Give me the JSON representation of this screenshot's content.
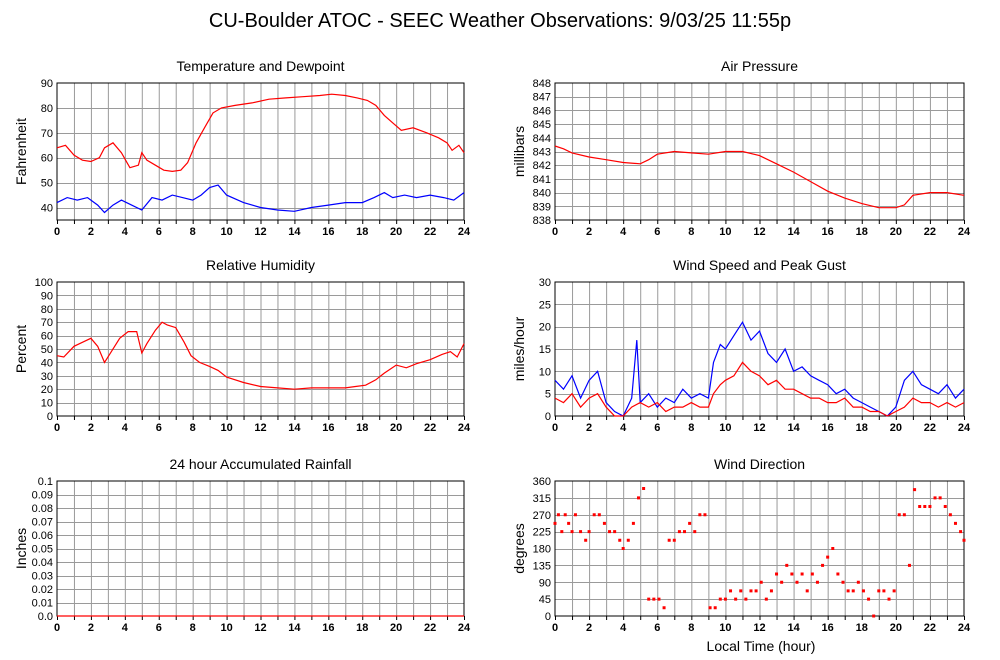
{
  "page": {
    "title": "CU-Boulder ATOC - SEEC Weather Observations: 9/03/25 11:55p",
    "xlabel": "Local Time (hour)"
  },
  "colors": {
    "primary": "#ff0000",
    "secondary": "#0000ff",
    "grid": "#9a9a9a"
  },
  "chart_data": [
    {
      "id": "temperature",
      "type": "line",
      "title": "Temperature and Dewpoint",
      "ylabel": "Fahrenheit",
      "xlim": [
        0,
        24
      ],
      "ylim": [
        35,
        90
      ],
      "yticks": [
        40,
        50,
        60,
        70,
        80,
        90
      ],
      "xticks": [
        0,
        2,
        4,
        6,
        8,
        10,
        12,
        14,
        16,
        18,
        20,
        22,
        24
      ],
      "grid": true,
      "series": [
        {
          "color": "#ff0000",
          "x": [
            0,
            0.5,
            1,
            1.5,
            2,
            2.5,
            2.8,
            3.3,
            3.8,
            4.3,
            4.8,
            5,
            5.3,
            5.8,
            6.3,
            6.8,
            7.3,
            7.7,
            8.2,
            8.7,
            9.2,
            9.7,
            10.5,
            11.5,
            12.5,
            13.5,
            14.5,
            15.5,
            16.2,
            17,
            17.7,
            18.3,
            18.8,
            19.3,
            19.8,
            20.3,
            21,
            21.8,
            22.5,
            23,
            23.3,
            23.7,
            24
          ],
          "y": [
            64,
            65,
            61,
            59,
            58.5,
            60,
            64,
            66,
            62,
            56,
            57,
            62,
            59,
            57,
            55,
            54.5,
            55,
            58,
            66,
            72,
            78,
            80,
            81,
            82,
            83.5,
            84,
            84.5,
            85,
            85.5,
            85,
            84,
            83,
            81,
            77,
            74,
            71,
            72,
            70,
            68,
            66,
            63,
            65,
            62
          ]
        },
        {
          "color": "#0000ff",
          "x": [
            0,
            0.6,
            1.2,
            1.8,
            2.4,
            2.8,
            3.3,
            3.8,
            4.4,
            5,
            5.6,
            6.2,
            6.8,
            7.4,
            8,
            8.5,
            9,
            9.5,
            10,
            11,
            12,
            13,
            14,
            15,
            16,
            17,
            18,
            18.7,
            19.3,
            19.8,
            20.5,
            21.2,
            22,
            22.8,
            23.4,
            24
          ],
          "y": [
            42,
            44,
            43,
            44,
            41,
            38,
            41,
            43,
            41,
            39,
            44,
            43,
            45,
            44,
            43,
            45,
            48,
            49,
            45,
            42,
            40,
            39,
            38.5,
            40,
            41,
            42,
            42,
            44,
            46,
            44,
            45,
            44,
            45,
            44,
            43,
            46
          ]
        }
      ]
    },
    {
      "id": "pressure",
      "type": "line",
      "title": "Air Pressure",
      "ylabel": "millibars",
      "xlim": [
        0,
        24
      ],
      "ylim": [
        838,
        848
      ],
      "yticks": [
        838,
        839,
        840,
        841,
        842,
        843,
        844,
        845,
        846,
        847,
        848
      ],
      "xticks": [
        0,
        2,
        4,
        6,
        8,
        10,
        12,
        14,
        16,
        18,
        20,
        22,
        24
      ],
      "grid": true,
      "series": [
        {
          "color": "#ff0000",
          "x": [
            0,
            0.5,
            1,
            2,
            3,
            4,
            5,
            5.5,
            6,
            7,
            8,
            9,
            10,
            11,
            12,
            13,
            14,
            15,
            16,
            17,
            18,
            19,
            20,
            20.5,
            21,
            22,
            23,
            24
          ],
          "y": [
            843.4,
            843.2,
            842.9,
            842.6,
            842.4,
            842.2,
            842.1,
            842.4,
            842.8,
            843,
            842.9,
            842.8,
            843,
            843,
            842.7,
            842.1,
            841.5,
            840.8,
            840.1,
            839.6,
            839.2,
            838.9,
            838.9,
            839.1,
            839.8,
            840,
            840,
            839.8
          ]
        }
      ]
    },
    {
      "id": "humidity",
      "type": "line",
      "title": "Relative Humidity",
      "ylabel": "Percent",
      "xlim": [
        0,
        24
      ],
      "ylim": [
        0,
        100
      ],
      "yticks": [
        0,
        10,
        20,
        30,
        40,
        50,
        60,
        70,
        80,
        90,
        100
      ],
      "xticks": [
        0,
        2,
        4,
        6,
        8,
        10,
        12,
        14,
        16,
        18,
        20,
        22,
        24
      ],
      "grid": true,
      "series": [
        {
          "color": "#ff0000",
          "x": [
            0,
            0.4,
            1,
            1.5,
            2,
            2.4,
            2.8,
            3.2,
            3.7,
            4.2,
            4.7,
            5,
            5.3,
            5.8,
            6.2,
            6.5,
            7,
            7.5,
            7.9,
            8.4,
            9,
            9.5,
            10,
            11,
            12,
            13,
            14,
            15,
            16,
            17,
            17.6,
            18.2,
            18.8,
            19.3,
            20,
            20.6,
            21.2,
            22,
            22.7,
            23.2,
            23.6,
            24
          ],
          "y": [
            45,
            44,
            52,
            55,
            58,
            52,
            40,
            48,
            58,
            63,
            63,
            47,
            54,
            64,
            70,
            68,
            66,
            55,
            45,
            40,
            37,
            34,
            29,
            25,
            22,
            21,
            20,
            21,
            21,
            21,
            22,
            23,
            27,
            32,
            38,
            36,
            39,
            42,
            46,
            48,
            44,
            54
          ]
        }
      ]
    },
    {
      "id": "wind-speed",
      "type": "line",
      "title": "Wind Speed and Peak Gust",
      "ylabel": "miles/hour",
      "xlim": [
        0,
        24
      ],
      "ylim": [
        0,
        30
      ],
      "yticks": [
        0,
        5,
        10,
        15,
        20,
        25,
        30
      ],
      "xticks": [
        0,
        2,
        4,
        6,
        8,
        10,
        12,
        14,
        16,
        18,
        20,
        22,
        24
      ],
      "grid": true,
      "series": [
        {
          "color": "#0000ff",
          "x": [
            0,
            0.5,
            1,
            1.5,
            2,
            2.5,
            3,
            3.5,
            4,
            4.5,
            4.8,
            5,
            5.5,
            6,
            6.5,
            7,
            7.5,
            8,
            8.5,
            9,
            9.3,
            9.7,
            10,
            10.5,
            11,
            11.5,
            12,
            12.5,
            13,
            13.5,
            14,
            14.5,
            15,
            15.5,
            16,
            16.5,
            17,
            17.5,
            18,
            18.5,
            19,
            19.5,
            20,
            20.5,
            21,
            21.5,
            22,
            22.5,
            23,
            23.5,
            24
          ],
          "y": [
            8,
            6,
            9,
            4,
            8,
            10,
            3,
            1,
            0,
            4,
            17,
            3,
            5,
            2,
            4,
            3,
            6,
            4,
            5,
            4,
            12,
            16,
            15,
            18,
            21,
            17,
            19,
            14,
            12,
            15,
            10,
            11,
            9,
            8,
            7,
            5,
            6,
            4,
            3,
            2,
            1,
            0,
            2,
            8,
            10,
            7,
            6,
            5,
            7,
            4,
            6
          ]
        },
        {
          "color": "#ff0000",
          "x": [
            0,
            0.5,
            1,
            1.5,
            2,
            2.5,
            3,
            3.5,
            4,
            4.5,
            5,
            5.5,
            6,
            6.5,
            7,
            7.5,
            8,
            8.5,
            9,
            9.3,
            9.7,
            10,
            10.5,
            11,
            11.5,
            12,
            12.5,
            13,
            13.5,
            14,
            14.5,
            15,
            15.5,
            16,
            16.5,
            17,
            17.5,
            18,
            18.5,
            19,
            19.5,
            20,
            20.5,
            21,
            21.5,
            22,
            22.5,
            23,
            23.5,
            24
          ],
          "y": [
            4,
            3,
            5,
            2,
            4,
            5,
            2,
            0,
            0,
            2,
            3,
            2,
            3,
            1,
            2,
            2,
            3,
            2,
            2,
            5,
            7,
            8,
            9,
            12,
            10,
            9,
            7,
            8,
            6,
            6,
            5,
            4,
            4,
            3,
            3,
            4,
            2,
            2,
            1,
            1,
            0,
            1,
            2,
            4,
            3,
            3,
            2,
            3,
            2,
            3
          ]
        }
      ]
    },
    {
      "id": "rainfall",
      "type": "line",
      "title": "24 hour Accumulated Rainfall",
      "ylabel": "Inches",
      "xlim": [
        0,
        24
      ],
      "ylim": [
        0,
        0.1
      ],
      "yticks": [
        0.0,
        0.01,
        0.02,
        0.03,
        0.04,
        0.05,
        0.06,
        0.07,
        0.08,
        0.09,
        0.1
      ],
      "ytick_labels": [
        "0.0",
        "0.01",
        "0.02",
        "0.03",
        "0.04",
        "0.05",
        "0.06",
        "0.07",
        "0.08",
        "0.09",
        "0.1"
      ],
      "xticks": [
        0,
        2,
        4,
        6,
        8,
        10,
        12,
        14,
        16,
        18,
        20,
        22,
        24
      ],
      "grid": true,
      "series": [
        {
          "color": "#ff0000",
          "x": [
            0,
            24
          ],
          "y": [
            0,
            0
          ]
        }
      ]
    },
    {
      "id": "wind-direction",
      "type": "scatter",
      "title": "Wind Direction",
      "ylabel": "degrees",
      "xlim": [
        0,
        24
      ],
      "ylim": [
        0,
        360
      ],
      "yticks": [
        0,
        45,
        90,
        135,
        180,
        225,
        270,
        315,
        360
      ],
      "xticks": [
        0,
        2,
        4,
        6,
        8,
        10,
        12,
        14,
        16,
        18,
        20,
        22,
        24
      ],
      "grid": true,
      "series": [
        {
          "color": "#ff0000",
          "x": [
            0,
            0.2,
            0.4,
            0.6,
            0.8,
            1.0,
            1.2,
            1.5,
            1.8,
            2.0,
            2.3,
            2.6,
            2.9,
            3.2,
            3.5,
            3.8,
            4.0,
            4.3,
            4.6,
            4.9,
            5.2,
            5.5,
            5.8,
            6.1,
            6.4,
            6.7,
            7.0,
            7.3,
            7.6,
            7.9,
            8.2,
            8.5,
            8.8,
            9.1,
            9.4,
            9.7,
            10.0,
            10.3,
            10.6,
            10.9,
            11.2,
            11.5,
            11.8,
            12.1,
            12.4,
            12.7,
            13.0,
            13.3,
            13.6,
            13.9,
            14.2,
            14.5,
            14.8,
            15.1,
            15.4,
            15.7,
            16.0,
            16.3,
            16.6,
            16.9,
            17.2,
            17.5,
            17.8,
            18.1,
            18.4,
            18.7,
            19.0,
            19.3,
            19.6,
            19.9,
            20.2,
            20.5,
            20.8,
            21.1,
            21.4,
            21.7,
            22.0,
            22.3,
            22.6,
            22.9,
            23.2,
            23.5,
            23.8,
            24.0
          ],
          "y": [
            247,
            270,
            225,
            270,
            247,
            225,
            270,
            225,
            202,
            225,
            270,
            270,
            247,
            225,
            225,
            202,
            180,
            202,
            247,
            315,
            340,
            45,
            45,
            45,
            22,
            202,
            202,
            225,
            225,
            247,
            225,
            270,
            270,
            22,
            22,
            45,
            45,
            67,
            45,
            67,
            45,
            67,
            67,
            90,
            45,
            67,
            112,
            90,
            135,
            112,
            90,
            112,
            67,
            112,
            90,
            135,
            157,
            180,
            112,
            90,
            67,
            67,
            90,
            67,
            45,
            0,
            67,
            67,
            45,
            67,
            270,
            270,
            135,
            337,
            292,
            292,
            292,
            315,
            315,
            292,
            270,
            247,
            225,
            202
          ]
        }
      ]
    }
  ]
}
